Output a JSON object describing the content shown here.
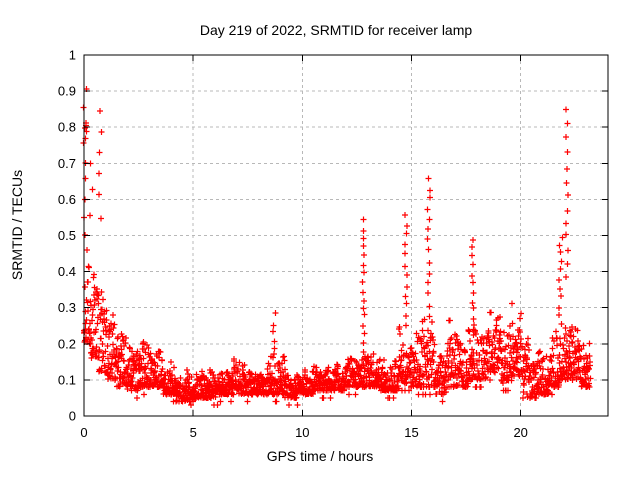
{
  "chart_data": {
    "type": "scatter",
    "title": "Day 219 of 2022, SRMTID for receiver lamp",
    "xlabel": "GPS time / hours",
    "ylabel": "SRMTID / TECUs",
    "xlim": [
      0,
      24
    ],
    "ylim": [
      0,
      1
    ],
    "xticks": [
      0,
      5,
      10,
      15,
      20
    ],
    "yticks": [
      0,
      0.1,
      0.2,
      0.3,
      0.4,
      0.5,
      0.6,
      0.7,
      0.8,
      0.9,
      1
    ],
    "grid": true,
    "legend": "none",
    "marker": "+",
    "colors": {
      "marker": "#ff0000",
      "grid": "#b8b8b8",
      "frame": "#000000",
      "text": "#000000",
      "background": "#ffffff"
    },
    "description": "Noisy scatter baseline 0.05-0.2 TECUs, quiet minimum near hours 4-6, transient vertical spike events; data ends near hour 23.2",
    "data_end_hour": 23.2,
    "peaks": [
      [
        0.08,
        0.91
      ],
      [
        0.75,
        0.84
      ],
      [
        3.2,
        0.22
      ],
      [
        8.7,
        0.28
      ],
      [
        12.8,
        0.54
      ],
      [
        14.75,
        0.56
      ],
      [
        15.8,
        0.66
      ],
      [
        17.8,
        0.49
      ],
      [
        19.9,
        0.33
      ],
      [
        22.1,
        0.84
      ]
    ],
    "gen": {
      "seed": 219,
      "step": 0.01,
      "segments": [
        [
          0.0,
          0.3,
          0.2,
          0.5
        ],
        [
          0.3,
          0.7,
          0.16,
          0.45
        ],
        [
          0.7,
          1.1,
          0.12,
          0.4
        ],
        [
          1.1,
          1.5,
          0.1,
          0.3
        ],
        [
          1.5,
          2.0,
          0.08,
          0.24
        ],
        [
          2.0,
          2.5,
          0.07,
          0.2
        ],
        [
          2.5,
          3.0,
          0.08,
          0.22
        ],
        [
          3.0,
          3.6,
          0.08,
          0.22
        ],
        [
          3.6,
          4.2,
          0.06,
          0.16
        ],
        [
          4.2,
          5.0,
          0.04,
          0.13
        ],
        [
          5.0,
          5.6,
          0.05,
          0.13
        ],
        [
          5.6,
          6.2,
          0.05,
          0.14
        ],
        [
          6.2,
          6.8,
          0.06,
          0.16
        ],
        [
          6.8,
          7.4,
          0.06,
          0.18
        ],
        [
          7.4,
          8.0,
          0.06,
          0.15
        ],
        [
          8.0,
          8.4,
          0.06,
          0.14
        ],
        [
          8.4,
          9.2,
          0.06,
          0.21
        ],
        [
          9.2,
          9.8,
          0.05,
          0.13
        ],
        [
          9.8,
          10.5,
          0.06,
          0.14
        ],
        [
          10.5,
          11.2,
          0.07,
          0.16
        ],
        [
          11.2,
          12.0,
          0.07,
          0.15
        ],
        [
          12.0,
          12.6,
          0.08,
          0.17
        ],
        [
          12.6,
          13.0,
          0.08,
          0.22
        ],
        [
          13.0,
          13.6,
          0.08,
          0.19
        ],
        [
          13.6,
          14.4,
          0.07,
          0.16
        ],
        [
          14.4,
          14.9,
          0.09,
          0.28
        ],
        [
          14.9,
          15.4,
          0.08,
          0.24
        ],
        [
          15.4,
          16.1,
          0.08,
          0.28
        ],
        [
          16.1,
          16.6,
          0.06,
          0.2
        ],
        [
          16.6,
          17.1,
          0.08,
          0.3
        ],
        [
          17.1,
          17.6,
          0.08,
          0.22
        ],
        [
          17.6,
          18.0,
          0.1,
          0.28
        ],
        [
          18.0,
          18.5,
          0.1,
          0.28
        ],
        [
          18.5,
          19.1,
          0.12,
          0.3
        ],
        [
          19.1,
          19.6,
          0.09,
          0.27
        ],
        [
          19.6,
          20.1,
          0.11,
          0.32
        ],
        [
          20.1,
          20.7,
          0.05,
          0.22
        ],
        [
          20.7,
          21.3,
          0.06,
          0.2
        ],
        [
          21.3,
          21.8,
          0.08,
          0.26
        ],
        [
          21.8,
          22.3,
          0.1,
          0.3
        ],
        [
          22.3,
          22.7,
          0.1,
          0.27
        ],
        [
          22.7,
          23.2,
          0.08,
          0.22
        ]
      ],
      "spikes": [
        [
          0.08,
          0.5,
          0.91,
          9,
          0.22
        ],
        [
          0.06,
          0.77,
          0.81,
          4,
          0.12
        ],
        [
          0.74,
          0.55,
          0.845,
          6,
          0.14
        ],
        [
          0.3,
          0.55,
          0.7,
          3,
          0.2
        ],
        [
          8.65,
          0.16,
          0.28,
          6,
          0.3
        ],
        [
          12.8,
          0.18,
          0.54,
          16,
          0.1
        ],
        [
          14.75,
          0.25,
          0.56,
          12,
          0.12
        ],
        [
          15.8,
          0.28,
          0.66,
          14,
          0.12
        ],
        [
          17.8,
          0.22,
          0.49,
          12,
          0.1
        ],
        [
          21.85,
          0.28,
          0.5,
          10,
          0.18
        ],
        [
          22.12,
          0.38,
          0.845,
          13,
          0.1
        ]
      ]
    }
  }
}
